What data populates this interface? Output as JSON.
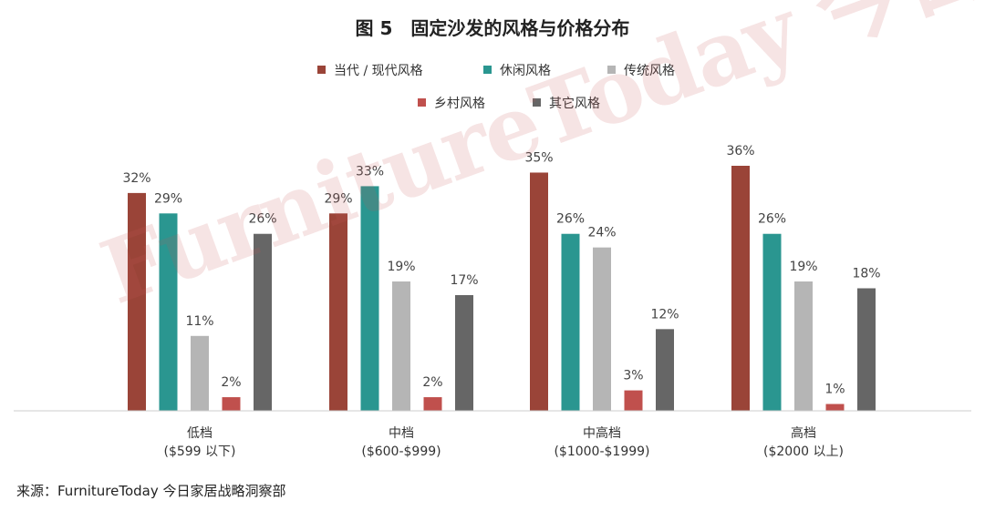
{
  "colors": {
    "series": [
      "#9a4438",
      "#2a9690",
      "#b5b5b5",
      "#c0504d",
      "#666666"
    ],
    "axis": "#cccccc",
    "text": "#333333"
  },
  "chart_data": {
    "type": "bar",
    "title": "图 5　固定沙发的风格与价格分布",
    "categories": [
      {
        "name": "低档",
        "sub": "($599 以下)"
      },
      {
        "name": "中档",
        "sub": "($600-$999)"
      },
      {
        "name": "中高档",
        "sub": "($1000-$1999)"
      },
      {
        "name": "高档",
        "sub": "($2000 以上)"
      }
    ],
    "series": [
      {
        "name": "当代 / 现代风格",
        "values": [
          32,
          29,
          35,
          36
        ]
      },
      {
        "name": "休闲风格",
        "values": [
          29,
          33,
          26,
          26
        ]
      },
      {
        "name": "传统风格",
        "values": [
          11,
          19,
          24,
          19
        ]
      },
      {
        "name": "乡村风格",
        "values": [
          2,
          2,
          3,
          1
        ]
      },
      {
        "name": "其它风格",
        "values": [
          26,
          17,
          12,
          18
        ]
      }
    ],
    "value_suffix": "%",
    "ylim": [
      0,
      36
    ],
    "grid": false,
    "legend_position": "top-center"
  },
  "watermark": "FurnitureToday 今日家居",
  "source": "来源：FurnitureToday 今日家居战略洞察部"
}
